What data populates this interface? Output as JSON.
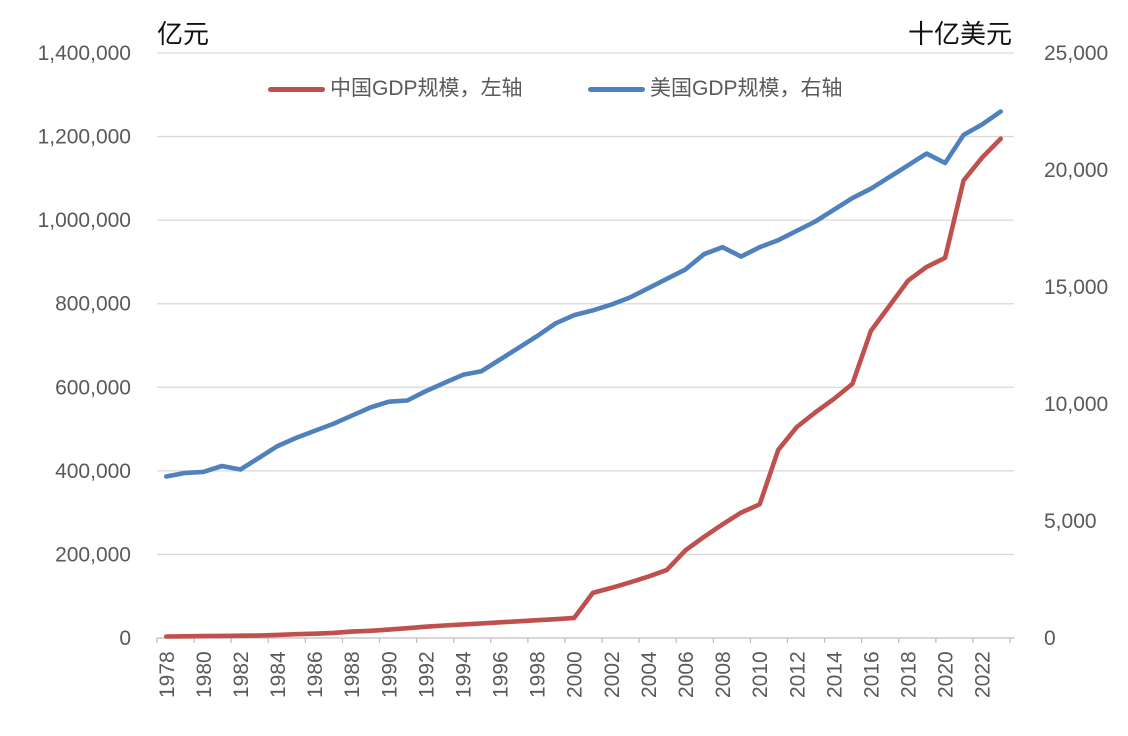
{
  "chart_data": {
    "type": "line",
    "title": "",
    "x": [
      1978,
      1979,
      1980,
      1981,
      1982,
      1983,
      1984,
      1985,
      1986,
      1987,
      1988,
      1989,
      1990,
      1991,
      1992,
      1993,
      1994,
      1995,
      1996,
      1997,
      1998,
      1999,
      2000,
      2001,
      2002,
      2003,
      2004,
      2005,
      2006,
      2007,
      2008,
      2009,
      2010,
      2011,
      2012,
      2013,
      2014,
      2015,
      2016,
      2017,
      2018,
      2019,
      2020,
      2021,
      2022,
      2023
    ],
    "x_tick_labels": [
      "1978",
      "1980",
      "1982",
      "1984",
      "1986",
      "1988",
      "1990",
      "1992",
      "1994",
      "1996",
      "1998",
      "2000",
      "2002",
      "2004",
      "2006",
      "2008",
      "2010",
      "2012",
      "2014",
      "2016",
      "2018",
      "2020",
      "2022"
    ],
    "series": [
      {
        "name": "中国GDP规模，左轴",
        "axis": "left",
        "color": "#C0504D",
        "values": [
          3700,
          4100,
          4600,
          5000,
          5400,
          6000,
          7300,
          9100,
          10400,
          12200,
          15200,
          17200,
          20000,
          23500,
          27000,
          30000,
          32500,
          35000,
          37500,
          40000,
          42500,
          45000,
          48000,
          108000,
          120000,
          133000,
          147000,
          163000,
          210000,
          242000,
          272000,
          300000,
          320000,
          450000,
          505000,
          540000,
          572000,
          608000,
          735000,
          795000,
          855000,
          888000,
          910000,
          1095000,
          1150000,
          1195000
        ]
      },
      {
        "name": "美国GDP规模，右轴",
        "axis": "right",
        "color": "#4F81BD",
        "values": [
          6900,
          7050,
          7100,
          7350,
          7200,
          7700,
          8200,
          8550,
          8850,
          9150,
          9500,
          9850,
          10100,
          10150,
          10550,
          10900,
          11250,
          11400,
          11900,
          12400,
          12900,
          13450,
          13800,
          14000,
          14250,
          14550,
          14950,
          15350,
          15750,
          16400,
          16700,
          16300,
          16700,
          17000,
          17400,
          17800,
          18300,
          18800,
          19200,
          19700,
          20200,
          20700,
          20300,
          21500,
          21950,
          22500
        ]
      }
    ],
    "left_axis": {
      "title": "亿元",
      "min": 0,
      "max": 1400000,
      "step": 200000,
      "tick_labels": [
        "0",
        "200,000",
        "400,000",
        "600,000",
        "800,000",
        "1,000,000",
        "1,200,000",
        "1,400,000"
      ]
    },
    "right_axis": {
      "title": "十亿美元",
      "min": 0,
      "max": 25000,
      "step": 5000,
      "tick_labels": [
        "0",
        "5,000",
        "10,000",
        "15,000",
        "20,000",
        "25,000"
      ]
    },
    "grid": "horizontal-on",
    "legend_position": "top-center",
    "x_label_rotation": -90
  },
  "style": {
    "background": "#ffffff",
    "gridline_color": "#d9d9d9",
    "axis_line_color": "#bfbfbf",
    "tick_label_color": "#595959",
    "legend_text_color": "#595959",
    "china_line_color": "#C0504D",
    "usa_line_color": "#4F81BD"
  }
}
